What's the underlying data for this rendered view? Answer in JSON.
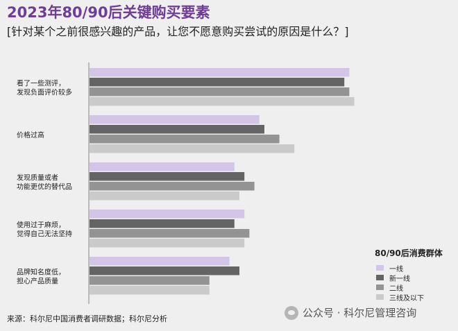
{
  "header": {
    "title": "2023年80/90后关键购买要素",
    "subtitle": "[针对某个之前很感兴趣的产品，让您不愿意购买尝试的原因是什么？]"
  },
  "source": "来源：科尔尼中国消费者调研数据；科尔尼分析",
  "watermark": "公众号 · 科尔尼管理咨询",
  "icons": {
    "watermark": "wechat-icon"
  },
  "colors": {
    "title": "#6e3d96",
    "series": [
      "#d3c5e8",
      "#646464",
      "#939393",
      "#cacaca"
    ]
  },
  "legend": {
    "title": "80/90后消费群体"
  },
  "chart_data": {
    "type": "bar",
    "orientation": "horizontal",
    "title": "2023年80/90后关键购买要素",
    "categories": [
      [
        "看了一些测评，",
        "发现负面评价较多"
      ],
      [
        "价格过高"
      ],
      [
        "发现质量或者",
        "功能更优的替代品"
      ],
      [
        "使用过于麻烦，",
        "觉得自己无法坚持"
      ],
      [
        "品牌知名度低，",
        "担心产品质量"
      ]
    ],
    "series": [
      {
        "name": "一线",
        "values": [
          52,
          34,
          29,
          31,
          28
        ]
      },
      {
        "name": "新一线",
        "values": [
          51,
          35,
          31,
          29,
          30
        ]
      },
      {
        "name": "二线",
        "values": [
          52,
          38,
          33,
          32,
          24
        ]
      },
      {
        "name": "三线及以下",
        "values": [
          53,
          41,
          30,
          31,
          24
        ]
      }
    ],
    "xlim": [
      0,
      60
    ],
    "grid": false,
    "legend_position": "bottom-right"
  }
}
